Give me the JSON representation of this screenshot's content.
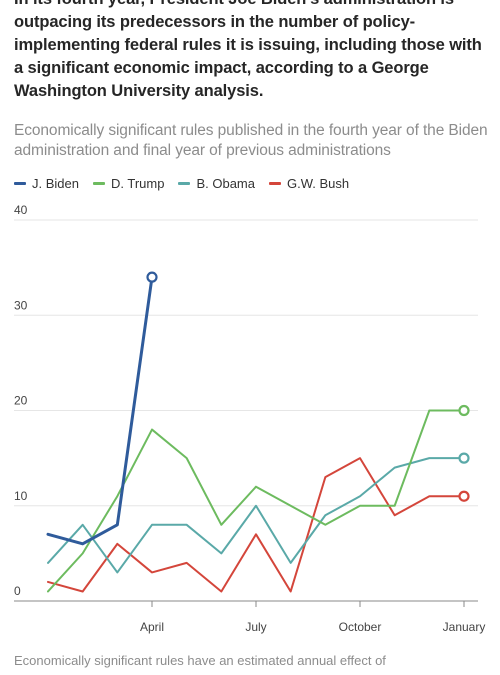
{
  "headline": "In its fourth year, President Joe Biden's administration is outpacing its predecessors in the number of policy-implementing federal rules it is issuing, including those with a significant economic impact, according to a George Washington University analysis.",
  "subtitle": "Economically significant rules published in the fourth year of the Biden administration and final year of previous administrations",
  "footnote": "Economically significant rules have an estimated annual effect of",
  "chart_data": {
    "type": "line",
    "title": "",
    "xlabel": "",
    "ylabel": "",
    "ylim": [
      0,
      40
    ],
    "yticks": [
      0,
      10,
      20,
      30,
      40
    ],
    "xlim": [
      1,
      13
    ],
    "xticks": [
      {
        "value": 4,
        "label": "April"
      },
      {
        "value": 7,
        "label": "July"
      },
      {
        "value": 10,
        "label": "October"
      },
      {
        "value": 13,
        "label": "January"
      }
    ],
    "grid": true,
    "legend": "top-left",
    "series": [
      {
        "name": "J. Biden",
        "color": "#2f5b9b",
        "x": [
          1,
          2,
          3,
          4
        ],
        "values": [
          7,
          6,
          8,
          34
        ]
      },
      {
        "name": "D. Trump",
        "color": "#6dbb5f",
        "x": [
          1,
          2,
          3,
          4,
          5,
          6,
          7,
          8,
          9,
          10,
          11,
          12,
          13
        ],
        "values": [
          1,
          5,
          11,
          18,
          15,
          8,
          12,
          10,
          8,
          10,
          10,
          20,
          20
        ]
      },
      {
        "name": "B. Obama",
        "color": "#5aa9a8",
        "x": [
          1,
          2,
          3,
          4,
          5,
          6,
          7,
          8,
          9,
          10,
          11,
          12,
          13
        ],
        "values": [
          4,
          8,
          3,
          8,
          8,
          5,
          10,
          4,
          9,
          11,
          14,
          15,
          15
        ]
      },
      {
        "name": "G.W. Bush",
        "color": "#d4463b",
        "x": [
          1,
          2,
          3,
          4,
          5,
          6,
          7,
          8,
          9,
          10,
          11,
          12,
          13
        ],
        "values": [
          2,
          1,
          6,
          3,
          4,
          1,
          7,
          1,
          13,
          15,
          9,
          11,
          11
        ]
      }
    ]
  }
}
